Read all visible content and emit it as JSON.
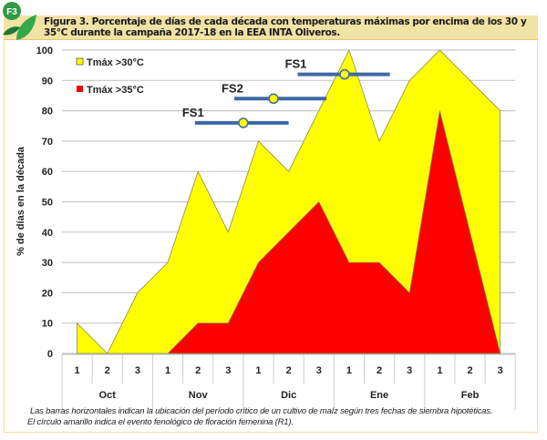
{
  "badge": "F3",
  "title": "Figura 3. Porcentaje de días de cada década con temperaturas máximas por encima de los 30 y 35°C durante la campaña 2017-18 en la EEA INTA Oliveros.",
  "caption": [
    "Las barras horizontales indican la ubicación del período crítico de un cultivo de maíz según tres fechas de siembra hipotéticas.",
    "El círculo amarillo indica el evento fenológico de floración femenina (R1)."
  ],
  "chart_data": {
    "type": "area",
    "title": "",
    "ylabel": "% de días en la década",
    "xlabel": "",
    "ylim": [
      0,
      100
    ],
    "yticks": [
      0,
      10,
      20,
      30,
      40,
      50,
      60,
      70,
      80,
      90,
      100
    ],
    "categories": [
      "1",
      "2",
      "3",
      "1",
      "2",
      "3",
      "1",
      "2",
      "3",
      "1",
      "2",
      "3",
      "1",
      "2",
      "3"
    ],
    "months": [
      "Oct",
      "Nov",
      "Dic",
      "Ene",
      "Feb"
    ],
    "grid": true,
    "legend_position": "top-left",
    "series": [
      {
        "name": "Tmáx >30°C",
        "color": "#ffff00",
        "values": [
          10,
          0,
          20,
          30,
          60,
          40,
          70,
          60,
          80,
          100,
          70,
          90,
          100,
          90,
          80
        ]
      },
      {
        "name": "Tmáx >35°C",
        "color": "#ff0000",
        "values": [
          null,
          null,
          null,
          0,
          10,
          10,
          30,
          40,
          50,
          30,
          30,
          20,
          80,
          40,
          0
        ]
      }
    ],
    "annotations": [
      {
        "label": "FS1",
        "start": 3.9,
        "end": 7.0,
        "r1": 5.5,
        "y": 76
      },
      {
        "label": "FS2",
        "start": 5.2,
        "end": 8.25,
        "r1": 6.5,
        "y": 84
      },
      {
        "label": "FS1",
        "start": 7.3,
        "end": 10.35,
        "r1": 8.85,
        "y": 92
      }
    ]
  }
}
